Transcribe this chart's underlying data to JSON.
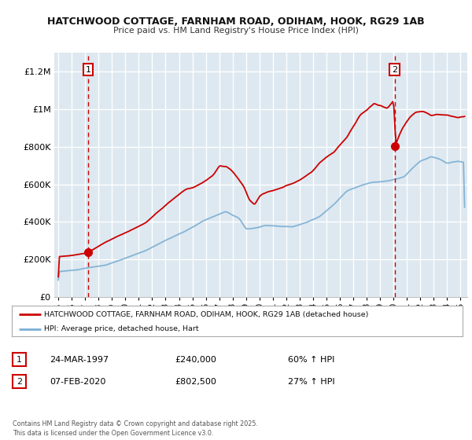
{
  "title": "HATCHWOOD COTTAGE, FARNHAM ROAD, ODIHAM, HOOK, RG29 1AB",
  "subtitle": "Price paid vs. HM Land Registry's House Price Index (HPI)",
  "legend_entry1": "HATCHWOOD COTTAGE, FARNHAM ROAD, ODIHAM, HOOK, RG29 1AB (detached house)",
  "legend_entry2": "HPI: Average price, detached house, Hart",
  "annotation1_date": "24-MAR-1997",
  "annotation1_price": "£240,000",
  "annotation1_hpi": "60% ↑ HPI",
  "annotation2_date": "07-FEB-2020",
  "annotation2_price": "£802,500",
  "annotation2_hpi": "27% ↑ HPI",
  "footer": "Contains HM Land Registry data © Crown copyright and database right 2025.\nThis data is licensed under the Open Government Licence v3.0.",
  "sale1_year": 1997.22,
  "sale1_value": 240000,
  "sale2_year": 2020.09,
  "sale2_value": 802500,
  "red_color": "#cc0000",
  "blue_color": "#7bafd4",
  "bg_color": "#dde8f0",
  "grid_color": "#ffffff",
  "ylim_max": 1300000,
  "xlim_min": 1994.7,
  "xlim_max": 2025.5
}
